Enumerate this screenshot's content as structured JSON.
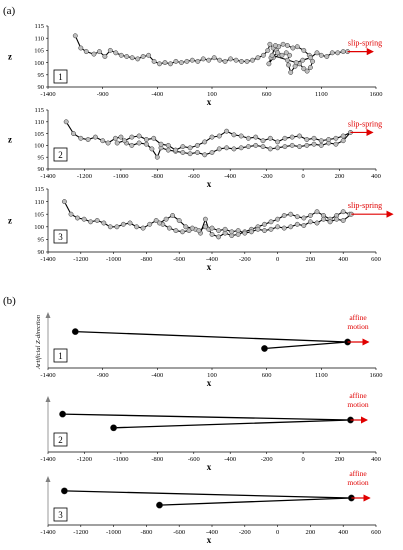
{
  "figure": {
    "labels": [
      "(a)",
      "(b)"
    ],
    "colors": {
      "chain": "#000000",
      "bead_fill": "#bdbdbd",
      "slip": "#e00000",
      "axis": "#808080"
    }
  },
  "chart_data": [
    {
      "type": "line",
      "panel_id": "1",
      "xlabel": "x",
      "ylabel": "z",
      "xlim": [
        -1400,
        1600
      ],
      "ylim": [
        90,
        115
      ],
      "xticks": [
        -1400,
        -900,
        -400,
        100,
        600,
        1100,
        1600
      ],
      "yticks": [
        90,
        95,
        100,
        105,
        110,
        115
      ],
      "annotation": "slip-spring",
      "slip_arrow": {
        "from": [
          1340,
          104.5
        ],
        "to": [
          1570,
          104.5
        ]
      },
      "series": [
        {
          "points": [
            [
              -1150,
              111
            ],
            [
              -1100,
              106
            ],
            [
              -1050,
              104.5
            ],
            [
              -980,
              103.5
            ],
            [
              -930,
              104.5
            ],
            [
              -880,
              102.5
            ],
            [
              -830,
              105
            ],
            [
              -780,
              104
            ],
            [
              -730,
              103
            ],
            [
              -680,
              102.5
            ],
            [
              -630,
              102
            ],
            [
              -580,
              101.5
            ],
            [
              -530,
              102.5
            ],
            [
              -480,
              103
            ],
            [
              -430,
              100.5
            ],
            [
              -380,
              99.5
            ],
            [
              -330,
              100
            ],
            [
              -280,
              99.5
            ],
            [
              -230,
              100.5
            ],
            [
              -180,
              100
            ],
            [
              -130,
              100.5
            ],
            [
              -80,
              101
            ],
            [
              -30,
              100.5
            ],
            [
              20,
              101.5
            ],
            [
              70,
              101
            ],
            [
              120,
              102
            ],
            [
              170,
              101
            ],
            [
              220,
              100.5
            ],
            [
              270,
              101.5
            ],
            [
              320,
              101
            ],
            [
              370,
              100.5
            ],
            [
              420,
              100.5
            ],
            [
              470,
              101
            ],
            [
              520,
              102
            ],
            [
              570,
              103
            ],
            [
              610,
              105
            ],
            [
              630,
              107.5
            ],
            [
              660,
              106
            ],
            [
              690,
              105
            ],
            [
              720,
              103
            ],
            [
              660,
              102
            ],
            [
              620,
              99.5
            ],
            [
              640,
              102
            ],
            [
              700,
              104
            ],
            [
              740,
              103
            ],
            [
              780,
              104
            ],
            [
              810,
              103
            ],
            [
              790,
              101
            ],
            [
              800,
              99
            ],
            [
              820,
              96
            ],
            [
              860,
              98.5
            ],
            [
              900,
              99.5
            ],
            [
              940,
              97.5
            ],
            [
              970,
              96.5
            ],
            [
              1000,
              98
            ],
            [
              1020,
              100.5
            ],
            [
              990,
              103
            ],
            [
              940,
              105
            ],
            [
              880,
              106.5
            ],
            [
              840,
              106
            ],
            [
              790,
              107
            ],
            [
              750,
              107.5
            ],
            [
              710,
              106.5
            ],
            [
              680,
              107
            ],
            [
              650,
              103
            ],
            [
              870,
              100
            ],
            [
              930,
              101
            ],
            [
              1000,
              102
            ],
            [
              1060,
              104
            ],
            [
              1100,
              103
            ],
            [
              1150,
              102.5
            ],
            [
              1200,
              104
            ],
            [
              1250,
              104
            ],
            [
              1300,
              104.5
            ],
            [
              1340,
              104.5
            ]
          ]
        }
      ]
    },
    {
      "type": "line",
      "panel_id": "2",
      "xlabel": "x",
      "ylabel": "z",
      "xlim": [
        -1400,
        400
      ],
      "ylim": [
        90,
        115
      ],
      "xticks": [
        -1400,
        -1200,
        -1000,
        -800,
        -600,
        -400,
        -200,
        0,
        200,
        400
      ],
      "yticks": [
        90,
        95,
        100,
        105,
        110,
        115
      ],
      "annotation": "slip-spring",
      "slip_arrow": {
        "from": [
          260,
          105.5
        ],
        "to": [
          380,
          105.5
        ]
      },
      "series": [
        {
          "points": [
            [
              -1300,
              110
            ],
            [
              -1260,
              105
            ],
            [
              -1220,
              103
            ],
            [
              -1180,
              102.5
            ],
            [
              -1140,
              103.5
            ],
            [
              -1100,
              102
            ],
            [
              -1070,
              101
            ],
            [
              -1030,
              103
            ],
            [
              -1000,
              103.5
            ],
            [
              -970,
              101
            ],
            [
              -940,
              100
            ],
            [
              -900,
              101
            ],
            [
              -860,
              100.5
            ],
            [
              -830,
              98.5
            ],
            [
              -800,
              95
            ],
            [
              -780,
              99
            ],
            [
              -740,
              98
            ],
            [
              -700,
              97.5
            ],
            [
              -660,
              97
            ],
            [
              -620,
              96.5
            ],
            [
              -580,
              97
            ],
            [
              -540,
              96
            ],
            [
              -500,
              97
            ],
            [
              -460,
              98.5
            ],
            [
              -420,
              99
            ],
            [
              -380,
              98.5
            ],
            [
              -340,
              99
            ],
            [
              -300,
              99.5
            ],
            [
              -260,
              100
            ],
            [
              -220,
              99.5
            ],
            [
              -180,
              98.5
            ],
            [
              -140,
              99
            ],
            [
              -100,
              99.5
            ],
            [
              -60,
              100
            ],
            [
              -20,
              99.5
            ],
            [
              20,
              100
            ],
            [
              60,
              100.5
            ],
            [
              100,
              100
            ],
            [
              140,
              101
            ],
            [
              180,
              100.5
            ],
            [
              220,
              102
            ],
            [
              260,
              105.5
            ],
            [
              220,
              104
            ],
            [
              180,
              103
            ],
            [
              140,
              102.5
            ],
            [
              100,
              102
            ],
            [
              60,
              103
            ],
            [
              20,
              102.5
            ],
            [
              -20,
              104
            ],
            [
              -60,
              103.5
            ],
            [
              -100,
              103
            ],
            [
              -140,
              101.5
            ],
            [
              -180,
              103
            ],
            [
              -220,
              102
            ],
            [
              -260,
              103.5
            ],
            [
              -300,
              103
            ],
            [
              -340,
              104
            ],
            [
              -380,
              104.5
            ],
            [
              -420,
              106
            ],
            [
              -460,
              104
            ],
            [
              -500,
              103.5
            ],
            [
              -540,
              101.5
            ],
            [
              -580,
              100
            ],
            [
              -620,
              99
            ],
            [
              -660,
              99.5
            ],
            [
              -700,
              98
            ],
            [
              -740,
              100
            ],
            [
              -780,
              100.5
            ],
            [
              -820,
              103
            ],
            [
              -860,
              102.5
            ],
            [
              -900,
              104
            ],
            [
              -940,
              103.5
            ],
            [
              -980,
              102
            ],
            [
              -1020,
              101
            ]
          ]
        }
      ]
    },
    {
      "type": "line",
      "panel_id": "3",
      "xlabel": "x",
      "ylabel": "z",
      "xlim": [
        -1400,
        600
      ],
      "ylim": [
        90,
        115
      ],
      "xticks": [
        -1400,
        -1200,
        -1000,
        -800,
        -600,
        -400,
        -200,
        0,
        200,
        400,
        600
      ],
      "yticks": [
        90,
        95,
        100,
        105,
        110,
        115
      ],
      "annotation": "slip-spring",
      "slip_arrow": {
        "from": [
          450,
          105
        ],
        "to": [
          700,
          105
        ]
      },
      "series": [
        {
          "points": [
            [
              -1300,
              110
            ],
            [
              -1260,
              105
            ],
            [
              -1220,
              103.5
            ],
            [
              -1180,
              103
            ],
            [
              -1140,
              102
            ],
            [
              -1100,
              102.5
            ],
            [
              -1060,
              101.5
            ],
            [
              -1020,
              100
            ],
            [
              -980,
              100
            ],
            [
              -940,
              101
            ],
            [
              -900,
              101.5
            ],
            [
              -860,
              100
            ],
            [
              -820,
              99.5
            ],
            [
              -780,
              101
            ],
            [
              -740,
              102.5
            ],
            [
              -700,
              101
            ],
            [
              -660,
              99.5
            ],
            [
              -620,
              98.5
            ],
            [
              -580,
              98
            ],
            [
              -540,
              98.5
            ],
            [
              -500,
              99
            ],
            [
              -470,
              97.5
            ],
            [
              -440,
              103
            ],
            [
              -420,
              99
            ],
            [
              -400,
              97
            ],
            [
              -360,
              96
            ],
            [
              -320,
              97.5
            ],
            [
              -280,
              96.5
            ],
            [
              -240,
              97
            ],
            [
              -200,
              98
            ],
            [
              -160,
              99
            ],
            [
              -120,
              100
            ],
            [
              -80,
              101
            ],
            [
              -40,
              102
            ],
            [
              0,
              103
            ],
            [
              40,
              104.5
            ],
            [
              80,
              105
            ],
            [
              120,
              104
            ],
            [
              160,
              103.5
            ],
            [
              200,
              104.5
            ],
            [
              240,
              106
            ],
            [
              280,
              104.5
            ],
            [
              320,
              103
            ],
            [
              360,
              104.5
            ],
            [
              400,
              106
            ],
            [
              440,
              105
            ],
            [
              450,
              105
            ],
            [
              400,
              102.5
            ],
            [
              360,
              103
            ],
            [
              320,
              102
            ],
            [
              280,
              103
            ],
            [
              240,
              101.5
            ],
            [
              200,
              102
            ],
            [
              160,
              100.5
            ],
            [
              120,
              101
            ],
            [
              80,
              100
            ],
            [
              40,
              99.5
            ],
            [
              0,
              100
            ],
            [
              -40,
              99
            ],
            [
              -80,
              98.5
            ],
            [
              -120,
              99
            ],
            [
              -160,
              98
            ],
            [
              -200,
              97.5
            ],
            [
              -240,
              98.5
            ],
            [
              -280,
              98
            ],
            [
              -320,
              99
            ],
            [
              -360,
              98.5
            ],
            [
              -400,
              99.5
            ],
            [
              -440,
              100
            ],
            [
              -480,
              98.5
            ],
            [
              -520,
              99.5
            ],
            [
              -560,
              100
            ],
            [
              -600,
              102.5
            ],
            [
              -640,
              104.5
            ],
            [
              -680,
              103
            ],
            [
              -720,
              101.5
            ]
          ]
        }
      ]
    },
    {
      "type": "line",
      "panel_id": "1",
      "xlabel": "x",
      "ylabel": "Artificial Z-direction",
      "xlim": [
        -1400,
        1600
      ],
      "xticks": [
        -1400,
        -900,
        -400,
        100,
        600,
        1100,
        1600
      ],
      "annotation": [
        "affine",
        "motion"
      ],
      "affine_arrow": {
        "from": [
          1340,
          0
        ],
        "to": [
          1530,
          0
        ]
      },
      "series": [
        {
          "points": [
            [
              -1150,
              0.8
            ],
            [
              1340,
              0
            ],
            [
              580,
              -0.5
            ]
          ]
        }
      ]
    },
    {
      "type": "line",
      "panel_id": "2",
      "xlabel": "x",
      "xlim": [
        -1400,
        400
      ],
      "xticks": [
        -1400,
        -1200,
        -1000,
        -800,
        -600,
        -400,
        -200,
        0,
        200,
        400
      ],
      "annotation": [
        "affine",
        "motion"
      ],
      "affine_arrow": {
        "from": [
          260,
          0
        ],
        "to": [
          350,
          0
        ]
      },
      "series": [
        {
          "points": [
            [
              -1320,
              0.45
            ],
            [
              260,
              0
            ],
            [
              -1040,
              -0.6
            ]
          ]
        }
      ]
    },
    {
      "type": "line",
      "panel_id": "3",
      "xlabel": "x",
      "xlim": [
        -1400,
        600
      ],
      "xticks": [
        -1400,
        -1200,
        -1000,
        -800,
        -600,
        -400,
        -200,
        0,
        200,
        400,
        600
      ],
      "annotation": [
        "affine",
        "motion"
      ],
      "affine_arrow": {
        "from": [
          450,
          0
        ],
        "to": [
          560,
          0
        ]
      },
      "series": [
        {
          "points": [
            [
              -1300,
              0.55
            ],
            [
              450,
              0
            ],
            [
              -720,
              -0.55
            ]
          ]
        }
      ]
    }
  ]
}
